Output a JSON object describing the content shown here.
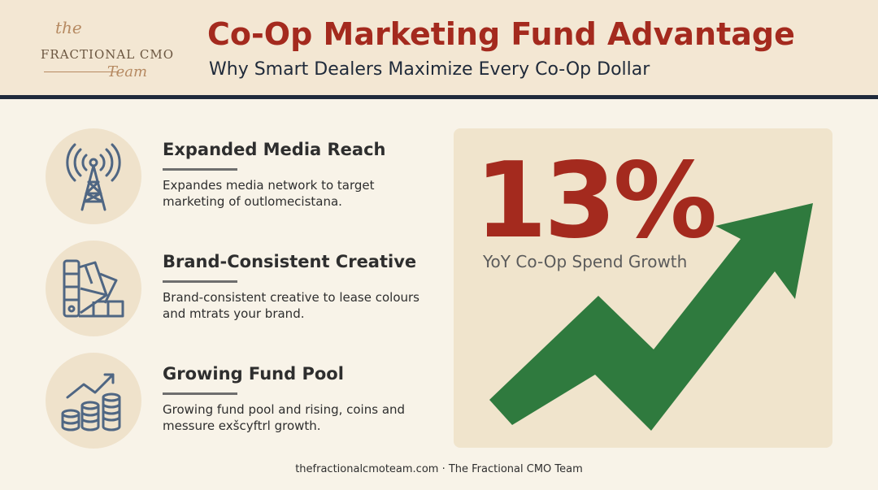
{
  "brand": {
    "logo_the": "the",
    "logo_main": "FRACTIONAL CMO",
    "logo_team": "Team"
  },
  "header": {
    "title": "Co-Op Marketing Fund Advantage",
    "subtitle": "Why Smart Dealers Maximize Every Co-Op Dollar"
  },
  "features": [
    {
      "title": "Expanded Media Reach",
      "description": "Expandes media network to target marketing of outlomecistana.",
      "icon": "radio-tower-icon"
    },
    {
      "title": "Brand-Consistent Creative",
      "description": "Brand-consistent creative to lease colours and mtrats your brand.",
      "icon": "color-swatch-icon"
    },
    {
      "title": "Growing Fund Pool",
      "description": "Growing fund pool and rising, coins and messure exšcyftrl growth.",
      "icon": "coins-growth-icon"
    }
  ],
  "stat": {
    "value": "13%",
    "label": "YoY Co-Op Spend Growth"
  },
  "footer": {
    "text": "thefractionalcmoteam.com · The Fractional CMO Team"
  },
  "colors": {
    "accent_red": "#a42a1e",
    "navy": "#1f2a3a",
    "arrow_green": "#2f7a3e",
    "header_bg": "#f3e7d3",
    "page_bg": "#f8f3e8",
    "icon_stroke": "#4f6683"
  }
}
